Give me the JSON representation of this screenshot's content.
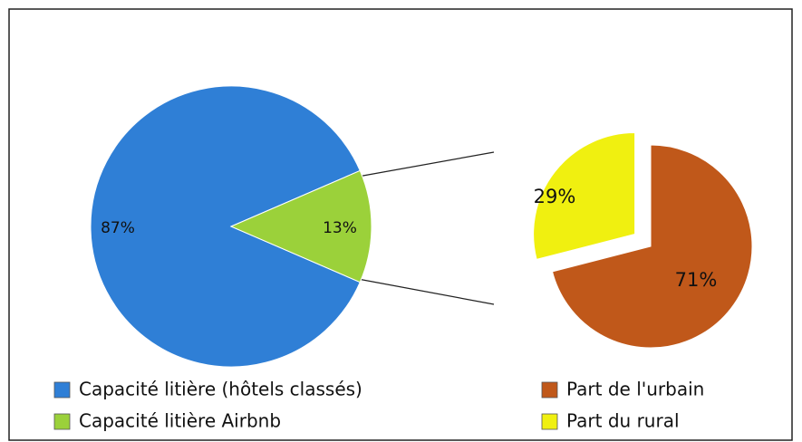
{
  "chart_data": [
    {
      "type": "pie",
      "categories": [
        "Capacité litière (hôtels classés)",
        "Capacité litière Airbnb"
      ],
      "values": [
        87,
        13
      ],
      "value_labels": [
        "87%",
        "13%"
      ],
      "colors": [
        "#2f7fd6",
        "#9bd13a"
      ]
    },
    {
      "type": "pie",
      "categories": [
        "Part de l'urbain",
        "Part du rural"
      ],
      "values": [
        71,
        29
      ],
      "value_labels": [
        "71%",
        "29%"
      ],
      "colors": [
        "#c0581a",
        "#f0f010"
      ]
    }
  ]
}
